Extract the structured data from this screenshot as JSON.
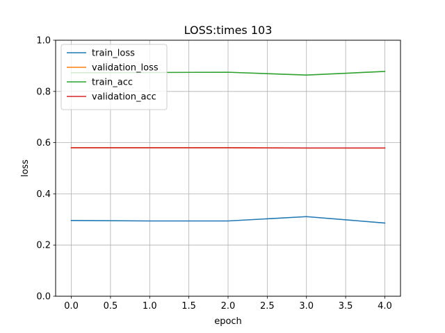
{
  "chart_data": {
    "type": "line",
    "title": "LOSS:times 103",
    "xlabel": "epoch",
    "ylabel": "loss",
    "xlim": [
      -0.2,
      4.2
    ],
    "ylim": [
      0.0,
      1.0
    ],
    "xticks": [
      "0.0",
      "0.5",
      "1.0",
      "1.5",
      "2.0",
      "2.5",
      "3.0",
      "3.5",
      "4.0"
    ],
    "yticks": [
      "0.0",
      "0.2",
      "0.4",
      "0.6",
      "0.8",
      "1.0"
    ],
    "grid": true,
    "legend_position": "top-left",
    "x": [
      0,
      1,
      2,
      3,
      4
    ],
    "series": [
      {
        "name": "train_loss",
        "color": "#1f77b4",
        "values": [
          0.296,
          0.294,
          0.294,
          0.311,
          0.286
        ]
      },
      {
        "name": "validation_loss",
        "color": "#ff7f0e",
        "values": [
          0.58,
          0.58,
          0.58,
          0.579,
          0.579
        ]
      },
      {
        "name": "train_acc",
        "color": "#2ca02c",
        "values": [
          0.873,
          0.874,
          0.875,
          0.864,
          0.878
        ]
      },
      {
        "name": "validation_acc",
        "color": "#d62728",
        "values": [
          0.58,
          0.58,
          0.58,
          0.579,
          0.579
        ]
      }
    ]
  }
}
